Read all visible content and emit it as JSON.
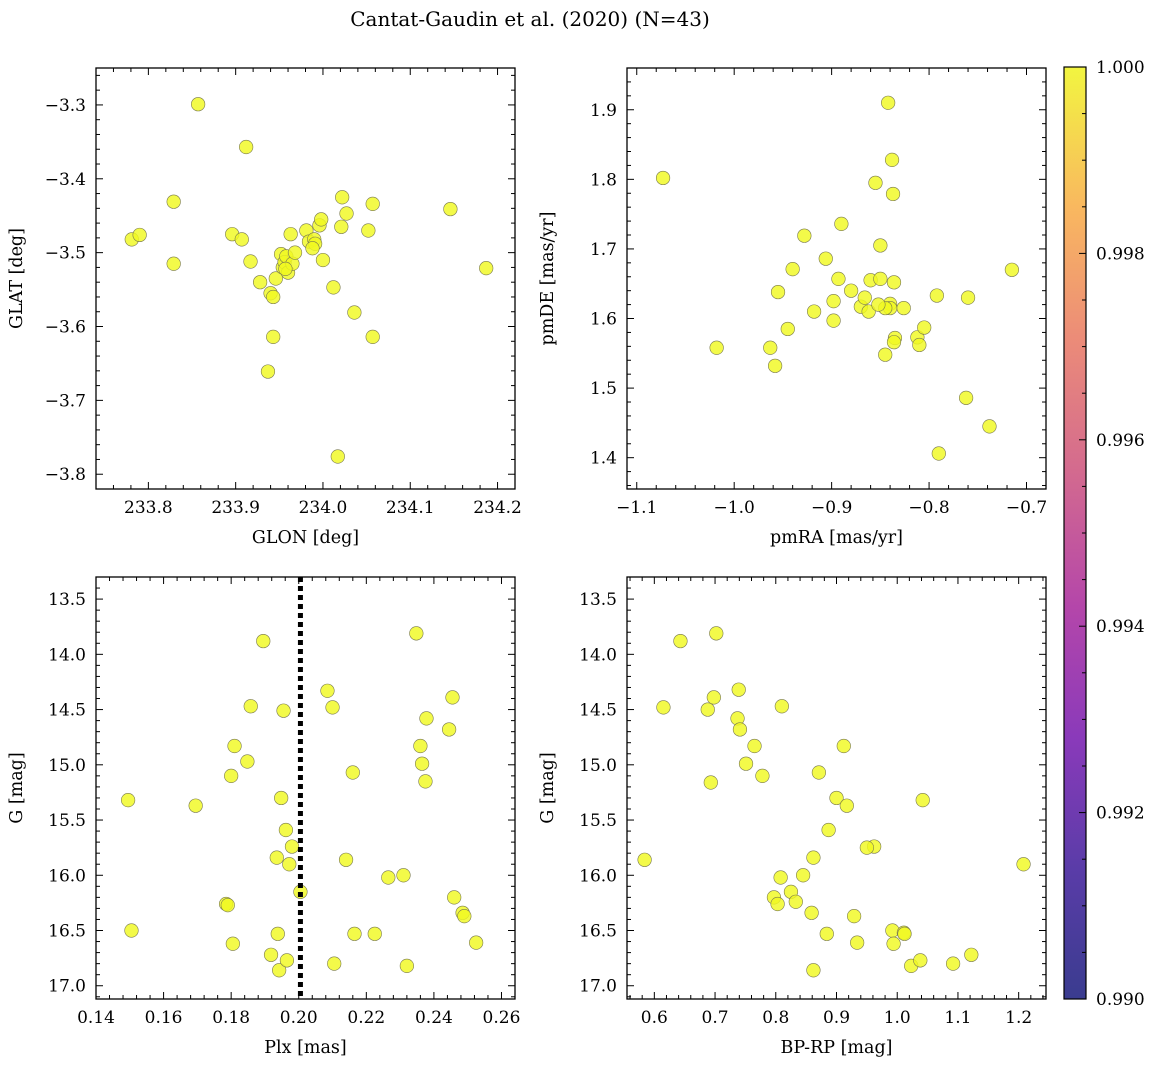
{
  "title": "Cantat-Gaudin et al. (2020) (N=43)",
  "colors": {
    "point": "#f0f921",
    "vline": "#000000"
  },
  "colorbar": {
    "min": 0.99,
    "max": 1.0,
    "ticks": [
      0.99,
      0.992,
      0.994,
      0.996,
      0.998,
      1.0
    ],
    "tick_labels": [
      "0.990",
      "0.992",
      "0.994",
      "0.996",
      "0.998",
      "1.000"
    ],
    "colormap": "plasma"
  },
  "chart_data": [
    {
      "id": "glon-glat",
      "type": "scatter",
      "xlabel": "GLON [deg]",
      "ylabel": "GLAT [deg]",
      "xlim": [
        233.74,
        234.22
      ],
      "ylim": [
        -3.82,
        -3.25
      ],
      "xticks": [
        233.8,
        233.9,
        234.0,
        234.1,
        234.2
      ],
      "xtick_labels": [
        "233.8",
        "233.9",
        "234.0",
        "234.1",
        "234.2"
      ],
      "yticks": [
        -3.8,
        -3.7,
        -3.6,
        -3.5,
        -3.4,
        -3.3
      ],
      "ytick_labels": [
        "−3.8",
        "−3.7",
        "−3.6",
        "−3.5",
        "−3.4",
        "−3.3"
      ],
      "x": [
        233.857,
        233.912,
        233.829,
        233.781,
        233.79,
        233.829,
        233.896,
        233.907,
        233.917,
        233.928,
        233.94,
        233.943,
        233.946,
        233.952,
        233.954,
        233.956,
        233.958,
        233.96,
        233.963,
        233.965,
        233.968,
        233.957,
        233.943,
        233.937,
        233.981,
        233.984,
        233.99,
        233.996,
        233.998,
        233.991,
        234.0,
        234.021,
        234.022,
        234.027,
        234.057,
        234.052,
        234.036,
        234.012,
        234.057,
        234.017,
        234.146,
        234.187,
        233.988
      ],
      "y": [
        -3.299,
        -3.357,
        -3.431,
        -3.482,
        -3.476,
        -3.515,
        -3.475,
        -3.482,
        -3.512,
        -3.54,
        -3.555,
        -3.56,
        -3.535,
        -3.502,
        -3.52,
        -3.513,
        -3.505,
        -3.527,
        -3.475,
        -3.515,
        -3.5,
        -3.522,
        -3.614,
        -3.661,
        -3.47,
        -3.485,
        -3.482,
        -3.463,
        -3.455,
        -3.488,
        -3.51,
        -3.465,
        -3.425,
        -3.447,
        -3.434,
        -3.47,
        -3.581,
        -3.547,
        -3.614,
        -3.776,
        -3.441,
        -3.521,
        -3.494
      ]
    },
    {
      "id": "pmra-pmde",
      "type": "scatter",
      "xlabel": "pmRA [mas/yr]",
      "ylabel": "pmDE [mas/yr]",
      "xlim": [
        -1.11,
        -0.68
      ],
      "ylim": [
        1.355,
        1.96
      ],
      "xticks": [
        -1.1,
        -1.0,
        -0.9,
        -0.8,
        -0.7
      ],
      "xtick_labels": [
        "−1.1",
        "−1.0",
        "−0.9",
        "−0.8",
        "−0.7"
      ],
      "yticks": [
        1.4,
        1.5,
        1.6,
        1.7,
        1.8,
        1.9
      ],
      "ytick_labels": [
        "1.4",
        "1.5",
        "1.6",
        "1.7",
        "1.8",
        "1.9"
      ],
      "x": [
        -1.073,
        -1.018,
        -0.963,
        -0.958,
        -0.955,
        -0.945,
        -0.94,
        -0.928,
        -0.918,
        -0.906,
        -0.898,
        -0.898,
        -0.89,
        -0.893,
        -0.88,
        -0.87,
        -0.866,
        -0.862,
        -0.86,
        -0.855,
        -0.85,
        -0.85,
        -0.845,
        -0.84,
        -0.842,
        -0.838,
        -0.837,
        -0.836,
        -0.835,
        -0.836,
        -0.84,
        -0.826,
        -0.812,
        -0.81,
        -0.805,
        -0.79,
        -0.792,
        -0.762,
        -0.76,
        -0.738,
        -0.715,
        -0.845,
        -0.852
      ],
      "y": [
        1.802,
        1.558,
        1.558,
        1.532,
        1.638,
        1.585,
        1.671,
        1.719,
        1.61,
        1.686,
        1.625,
        1.597,
        1.736,
        1.657,
        1.64,
        1.617,
        1.63,
        1.61,
        1.655,
        1.795,
        1.705,
        1.657,
        1.548,
        1.621,
        1.91,
        1.828,
        1.779,
        1.652,
        1.572,
        1.566,
        1.615,
        1.615,
        1.573,
        1.562,
        1.587,
        1.406,
        1.633,
        1.486,
        1.63,
        1.445,
        1.67,
        1.615,
        1.62
      ]
    },
    {
      "id": "plx-g",
      "type": "scatter",
      "xlabel": "Plx [mas]",
      "ylabel": "G [mag]",
      "xlim": [
        0.14,
        0.264
      ],
      "ylim": [
        17.12,
        13.3
      ],
      "y_inverted": true,
      "vline_x": 0.2005,
      "vline_style": "dotted",
      "xticks": [
        0.14,
        0.16,
        0.18,
        0.2,
        0.22,
        0.24,
        0.26
      ],
      "xtick_labels": [
        "0.14",
        "0.16",
        "0.18",
        "0.20",
        "0.22",
        "0.24",
        "0.26"
      ],
      "yticks": [
        13.5,
        14.0,
        14.5,
        15.0,
        15.5,
        16.0,
        16.5,
        17.0
      ],
      "ytick_labels": [
        "13.5",
        "14.0",
        "14.5",
        "15.0",
        "15.5",
        "16.0",
        "16.5",
        "17.0"
      ],
      "x": [
        0.1495,
        0.1505,
        0.1695,
        0.1785,
        0.179,
        0.18,
        0.1805,
        0.181,
        0.1848,
        0.1858,
        0.1895,
        0.1918,
        0.1935,
        0.1938,
        0.1942,
        0.1948,
        0.1955,
        0.1962,
        0.1972,
        0.198,
        0.2005,
        0.2085,
        0.21,
        0.2105,
        0.214,
        0.216,
        0.2165,
        0.2225,
        0.2265,
        0.231,
        0.232,
        0.2348,
        0.236,
        0.2365,
        0.2375,
        0.2378,
        0.2445,
        0.2455,
        0.246,
        0.2485,
        0.249,
        0.2525,
        0.1965
      ],
      "y": [
        15.32,
        16.5,
        15.37,
        16.26,
        16.27,
        15.1,
        16.62,
        14.83,
        14.97,
        14.47,
        13.88,
        16.72,
        15.84,
        16.53,
        16.86,
        15.3,
        14.51,
        15.59,
        15.9,
        15.74,
        16.15,
        14.33,
        14.48,
        16.8,
        15.86,
        15.07,
        16.53,
        16.53,
        16.02,
        16.0,
        16.82,
        13.81,
        14.83,
        14.99,
        15.15,
        14.58,
        14.68,
        14.39,
        16.2,
        16.34,
        16.37,
        16.61,
        16.77
      ]
    },
    {
      "id": "bprp-g",
      "type": "scatter",
      "xlabel": "BP-RP [mag]",
      "ylabel": "G [mag]",
      "xlim": [
        0.555,
        1.245
      ],
      "ylim": [
        17.12,
        13.3
      ],
      "y_inverted": true,
      "xticks": [
        0.6,
        0.7,
        0.8,
        0.9,
        1.0,
        1.1,
        1.2
      ],
      "xtick_labels": [
        "0.6",
        "0.7",
        "0.8",
        "0.9",
        "1.0",
        "1.1",
        "1.2"
      ],
      "yticks": [
        13.5,
        14.0,
        14.5,
        15.0,
        15.5,
        16.0,
        16.5,
        17.0
      ],
      "ytick_labels": [
        "13.5",
        "14.0",
        "14.5",
        "15.0",
        "15.5",
        "16.0",
        "16.5",
        "17.0"
      ],
      "x": [
        0.584,
        0.615,
        0.643,
        0.688,
        0.693,
        0.698,
        0.702,
        0.737,
        0.739,
        0.741,
        0.751,
        0.765,
        0.778,
        0.797,
        0.803,
        0.808,
        0.81,
        0.825,
        0.833,
        0.859,
        0.862,
        0.871,
        0.884,
        0.887,
        0.9,
        0.912,
        0.917,
        0.929,
        0.934,
        0.962,
        0.992,
        0.994,
        1.011,
        1.012,
        1.023,
        1.038,
        1.042,
        1.092,
        1.122,
        1.208,
        0.845,
        0.862,
        0.95
      ],
      "y": [
        15.86,
        14.48,
        13.88,
        14.5,
        15.16,
        14.39,
        13.81,
        14.58,
        14.32,
        14.68,
        14.99,
        14.83,
        15.1,
        16.2,
        16.26,
        16.02,
        14.47,
        16.15,
        16.24,
        16.34,
        15.84,
        15.07,
        16.53,
        15.59,
        15.3,
        14.83,
        15.37,
        16.37,
        16.61,
        15.74,
        16.5,
        16.62,
        16.52,
        16.53,
        16.82,
        16.77,
        15.32,
        16.8,
        16.72,
        15.9,
        16.0,
        16.86,
        15.75
      ]
    }
  ]
}
